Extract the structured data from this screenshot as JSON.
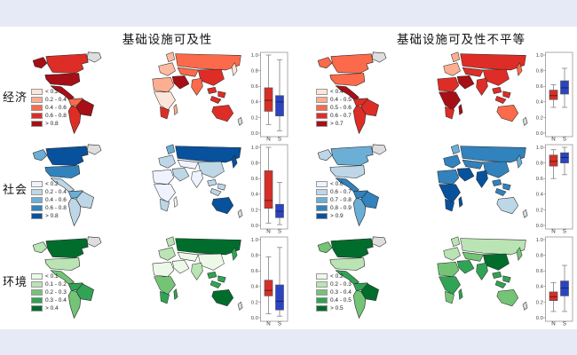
{
  "page": {
    "background": "#e6e9f6",
    "figure_background": "#ffffff"
  },
  "columns": [
    {
      "title": "基础设施可及性"
    },
    {
      "title": "基础设施可及性不平等"
    }
  ],
  "rows": [
    {
      "label": "经济"
    },
    {
      "label": "社会"
    },
    {
      "label": "环境"
    }
  ],
  "chart_data": [
    {
      "type": "choropleth_map_with_boxplot",
      "row": "经济",
      "column": "基础设施可及性",
      "map_classes": {
        "labels": [
          "< 0.2",
          "0.2 - 0.4",
          "0.4 - 0.6",
          "0.6 - 0.8",
          "> 0.8"
        ],
        "colors": [
          "#fee5d9",
          "#fcae91",
          "#fb6a4a",
          "#de2d26",
          "#a50f15"
        ]
      },
      "regions": {
        "greenland": "#dedede",
        "alaska": "#a50f15",
        "canada": "#de2d26",
        "usa": "#a50f15",
        "mexico": "#a50f15",
        "sa_north": "#fb6a4a",
        "brazil": "#a50f15",
        "sa_south": "#de2d26",
        "scandinavia": "#fcbba1",
        "europe": "#fcbba1",
        "russia": "#fb6a4a",
        "central_asia": "#fb6a4a",
        "middle_east": "#a50f15",
        "north_africa": "#fcae91",
        "central_africa": "#fee5d9",
        "south_africa": "#de2d26",
        "madagascar": "#fcae91",
        "india": "#fb6a4a",
        "china": "#de2d26",
        "japan": "#fee5d9",
        "se_asia": "#de2d26",
        "australia": "#de2d26",
        "new_zealand": "#d9d9d9"
      },
      "boxplot": {
        "ylim": [
          0,
          1
        ],
        "yticks": [
          "1.0",
          "0.8",
          "0.6",
          "0.4",
          "0.2",
          "0.0"
        ],
        "groups": [
          {
            "label": "N",
            "color": "#d62f28",
            "low": 0.11,
            "q1": 0.28,
            "median": 0.42,
            "q3": 0.58,
            "high": 1.0
          },
          {
            "label": "S",
            "color": "#2a44c4",
            "low": 0.03,
            "q1": 0.22,
            "median": 0.4,
            "q3": 0.48,
            "high": 0.94
          }
        ]
      }
    },
    {
      "type": "choropleth_map_with_boxplot",
      "row": "经济",
      "column": "基础设施可及性不平等",
      "map_classes": {
        "labels": [
          "< 0.4",
          "0.4 - 0.5",
          "0.5 - 0.6",
          "0.6 - 0.7",
          "> 0.7"
        ],
        "colors": [
          "#fee5d9",
          "#fcae91",
          "#fb6a4a",
          "#de2d26",
          "#a50f15"
        ]
      },
      "regions": {
        "greenland": "#dedede",
        "alaska": "#fb6a4a",
        "canada": "#fb6a4a",
        "usa": "#fb6a4a",
        "mexico": "#a50f15",
        "sa_north": "#de2d26",
        "brazil": "#de2d26",
        "sa_south": "#de2d26",
        "scandinavia": "#fcae91",
        "europe": "#fcae91",
        "russia": "#de2d26",
        "central_asia": "#de2d26",
        "middle_east": "#a50f15",
        "north_africa": "#de2d26",
        "central_africa": "#a50f15",
        "south_africa": "#de2d26",
        "madagascar": "#a50f15",
        "india": "#de2d26",
        "china": "#de2d26",
        "japan": "#fb6a4a",
        "se_asia": "#de2d26",
        "australia": "#fb6a4a",
        "new_zealand": "#d9d9d9"
      },
      "boxplot": {
        "ylim": [
          0,
          1
        ],
        "yticks": [
          "1.0",
          "0.8",
          "0.6",
          "0.4",
          "0.2",
          "0.0"
        ],
        "groups": [
          {
            "label": "N",
            "color": "#d62f28",
            "low": 0.33,
            "q1": 0.43,
            "median": 0.48,
            "q3": 0.55,
            "high": 0.62
          },
          {
            "label": "S",
            "color": "#2a44c4",
            "low": 0.33,
            "q1": 0.5,
            "median": 0.58,
            "q3": 0.67,
            "high": 0.83
          }
        ]
      }
    },
    {
      "type": "choropleth_map_with_boxplot",
      "row": "社会",
      "column": "基础设施可及性",
      "map_classes": {
        "labels": [
          "< 0.2",
          "0.2 - 0.4",
          "0.4 - 0.6",
          "0.6 - 0.8",
          "> 0.8"
        ],
        "colors": [
          "#eff3ff",
          "#bdd7e7",
          "#6baed6",
          "#3182bd",
          "#08519c"
        ]
      },
      "regions": {
        "greenland": "#dedede",
        "alaska": "#6baed6",
        "canada": "#08519c",
        "usa": "#3182bd",
        "mexico": "#bdd7e7",
        "sa_north": "#6baed6",
        "brazil": "#bdd7e7",
        "sa_south": "#bdd7e7",
        "scandinavia": "#6baed6",
        "europe": "#bdd7e7",
        "russia": "#08519c",
        "central_asia": "#eff3ff",
        "middle_east": "#bdd7e7",
        "north_africa": "#eff3ff",
        "central_africa": "#eff3ff",
        "south_africa": "#bdd7e7",
        "madagascar": "#eff3ff",
        "india": "#eff3ff",
        "china": "#bdd7e7",
        "japan": "#08519c",
        "se_asia": "#bdd7e7",
        "australia": "#08519c",
        "new_zealand": "#d9d9d9"
      },
      "boxplot": {
        "ylim": [
          0,
          1
        ],
        "yticks": [
          "1.0",
          "0.8",
          "0.6",
          "0.4",
          "0.2",
          "0.0"
        ],
        "groups": [
          {
            "label": "N",
            "color": "#d62f28",
            "low": 0.03,
            "q1": 0.22,
            "median": 0.32,
            "q3": 0.7,
            "high": 1.0
          },
          {
            "label": "S",
            "color": "#2a44c4",
            "low": 0.01,
            "q1": 0.1,
            "median": 0.18,
            "q3": 0.27,
            "high": 0.55
          }
        ]
      }
    },
    {
      "type": "choropleth_map_with_boxplot",
      "row": "社会",
      "column": "基础设施可及性不平等",
      "map_classes": {
        "labels": [
          "< 0.6",
          "0.6 - 0.7",
          "0.7 - 0.8",
          "0.8 - 0.9",
          "> 0.9"
        ],
        "colors": [
          "#eff3ff",
          "#bdd7e7",
          "#6baed6",
          "#3182bd",
          "#08519c"
        ]
      },
      "regions": {
        "greenland": "#dedede",
        "alaska": "#bdd7e7",
        "canada": "#6baed6",
        "usa": "#bdd7e7",
        "mexico": "#3182bd",
        "sa_north": "#3182bd",
        "brazil": "#3182bd",
        "sa_south": "#6baed6",
        "scandinavia": "#6baed6",
        "europe": "#3182bd",
        "russia": "#3182bd",
        "central_asia": "#3182bd",
        "middle_east": "#08519c",
        "north_africa": "#3182bd",
        "central_africa": "#08519c",
        "south_africa": "#08519c",
        "madagascar": "#08519c",
        "india": "#08519c",
        "china": "#3182bd",
        "japan": "#6baed6",
        "se_asia": "#3182bd",
        "australia": "#bdd7e7",
        "new_zealand": "#d9d9d9"
      },
      "boxplot": {
        "ylim": [
          0,
          1
        ],
        "yticks": [
          "1.0",
          "0.8",
          "0.6",
          "0.4",
          "0.2",
          "0.0"
        ],
        "groups": [
          {
            "label": "N",
            "color": "#d62f28",
            "low": 0.6,
            "q1": 0.76,
            "median": 0.82,
            "q3": 0.9,
            "high": 0.97
          },
          {
            "label": "S",
            "color": "#2a44c4",
            "low": 0.65,
            "q1": 0.8,
            "median": 0.87,
            "q3": 0.93,
            "high": 1.0
          }
        ]
      }
    },
    {
      "type": "choropleth_map_with_boxplot",
      "row": "环境",
      "column": "基础设施可及性",
      "map_classes": {
        "labels": [
          "< 0.1",
          "0.1 - 0.2",
          "0.2 - 0.3",
          "0.3 - 0.4",
          "> 0.4"
        ],
        "colors": [
          "#edf8e9",
          "#bae4b3",
          "#74c476",
          "#31a354",
          "#006d2c"
        ]
      },
      "regions": {
        "greenland": "#dedede",
        "alaska": "#bae4b3",
        "canada": "#006d2c",
        "usa": "#bae4b3",
        "mexico": "#74c476",
        "sa_north": "#31a354",
        "brazil": "#31a354",
        "sa_south": "#74c476",
        "scandinavia": "#bae4b3",
        "europe": "#bae4b3",
        "russia": "#006d2c",
        "central_asia": "#edf8e9",
        "middle_east": "#edf8e9",
        "north_africa": "#edf8e9",
        "central_africa": "#74c476",
        "south_africa": "#31a354",
        "madagascar": "#31a354",
        "india": "#bae4b3",
        "china": "#edf8e9",
        "japan": "#31a354",
        "se_asia": "#31a354",
        "australia": "#006d2c",
        "new_zealand": "#d9d9d9"
      },
      "boxplot": {
        "ylim": [
          0,
          1
        ],
        "yticks": [
          "1.0",
          "0.8",
          "0.6",
          "0.4",
          "0.2",
          "0.0"
        ],
        "groups": [
          {
            "label": "N",
            "color": "#d62f28",
            "low": 0.05,
            "q1": 0.28,
            "median": 0.35,
            "q3": 0.48,
            "high": 0.78
          },
          {
            "label": "S",
            "color": "#2a44c4",
            "low": 0.02,
            "q1": 0.1,
            "median": 0.21,
            "q3": 0.42,
            "high": 0.9
          }
        ]
      }
    },
    {
      "type": "choropleth_map_with_boxplot",
      "row": "环境",
      "column": "基础设施可及性不平等",
      "map_classes": {
        "labels": [
          "< 0.2",
          "0.2 - 0.3",
          "0.3 - 0.4",
          "0.4 - 0.5",
          "> 0.5"
        ],
        "colors": [
          "#edf8e9",
          "#bae4b3",
          "#74c476",
          "#31a354",
          "#006d2c"
        ]
      },
      "regions": {
        "greenland": "#dedede",
        "alaska": "#74c476",
        "canada": "#006d2c",
        "usa": "#bae4b3",
        "mexico": "#31a354",
        "sa_north": "#31a354",
        "brazil": "#006d2c",
        "sa_south": "#74c476",
        "scandinavia": "#bae4b3",
        "europe": "#bae4b3",
        "russia": "#bae4b3",
        "central_asia": "#74c476",
        "middle_east": "#31a354",
        "north_africa": "#74c476",
        "central_africa": "#31a354",
        "south_africa": "#74c476",
        "madagascar": "#31a354",
        "india": "#31a354",
        "china": "#006d2c",
        "japan": "#74c476",
        "se_asia": "#31a354",
        "australia": "#74c476",
        "new_zealand": "#d9d9d9"
      },
      "boxplot": {
        "ylim": [
          0,
          1
        ],
        "yticks": [
          "1.0",
          "0.8",
          "0.6",
          "0.4",
          "0.2",
          "0.0"
        ],
        "groups": [
          {
            "label": "N",
            "color": "#d62f28",
            "low": 0.08,
            "q1": 0.22,
            "median": 0.27,
            "q3": 0.33,
            "high": 0.45
          },
          {
            "label": "S",
            "color": "#2a44c4",
            "low": 0.08,
            "q1": 0.28,
            "median": 0.38,
            "q3": 0.47,
            "high": 0.67
          }
        ]
      }
    }
  ]
}
